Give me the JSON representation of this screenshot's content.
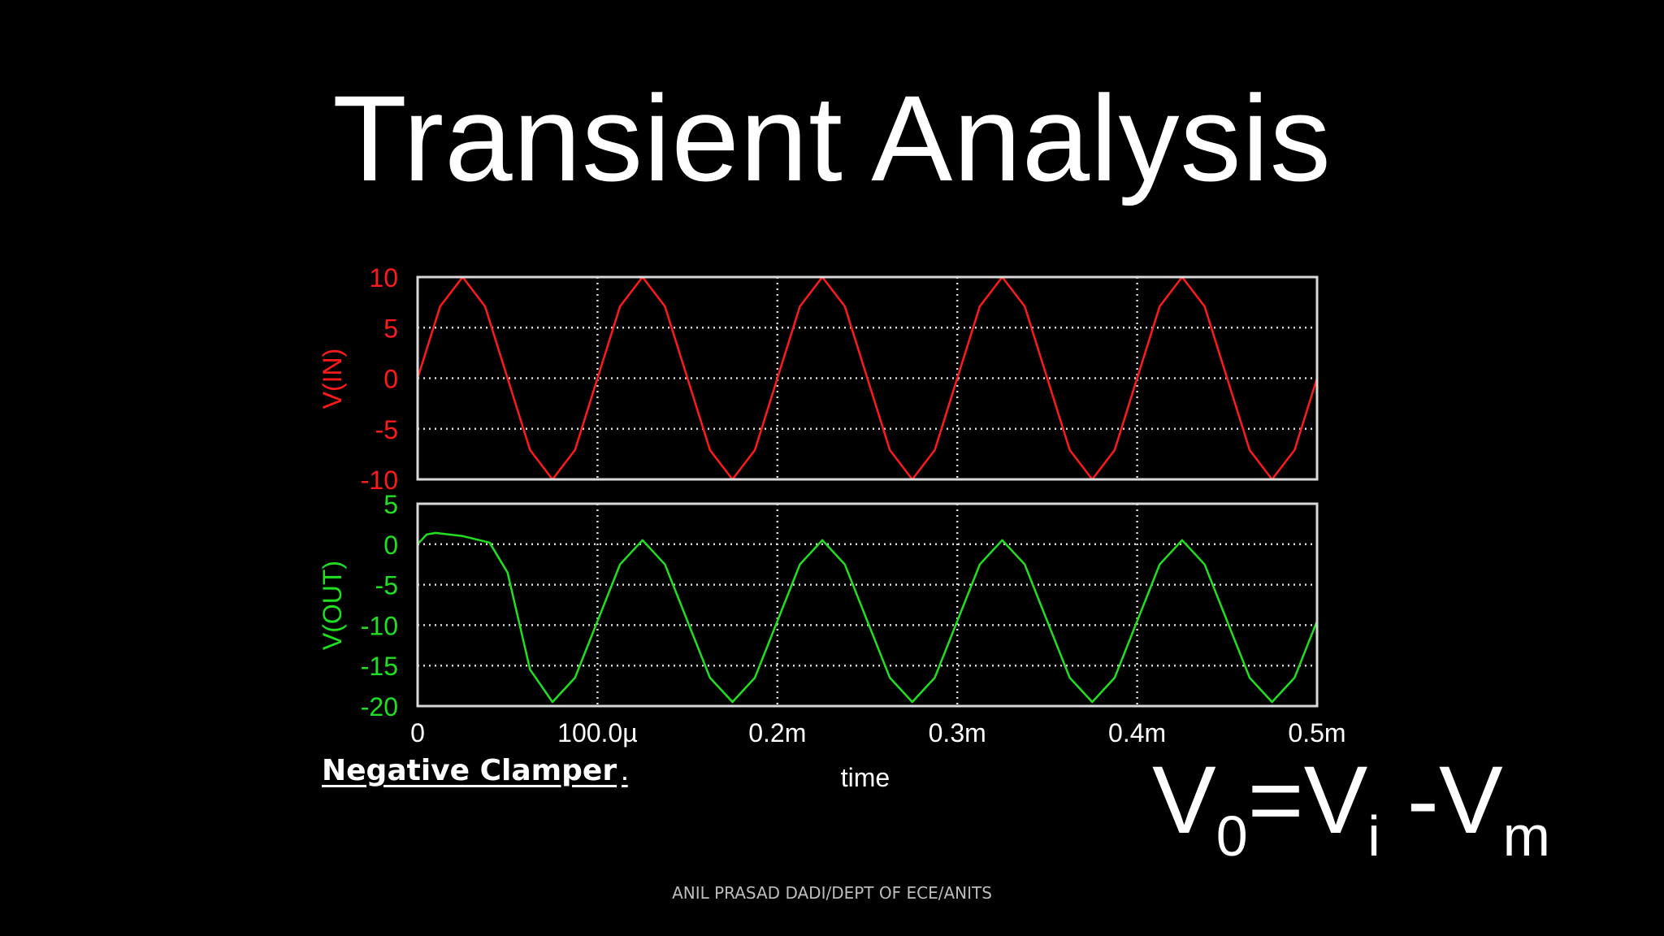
{
  "slide": {
    "title": "Transient Analysis",
    "caption": "Negative Clamper",
    "caption_mark": ".",
    "formula": {
      "v": "V",
      "sub0": "0",
      "eq": "=",
      "v2": "V",
      "sub_i": "i",
      "minus": " -",
      "v3": "V",
      "sub_m": "m"
    },
    "footer": "ANIL PRASAD DADI/DEPT OF ECE/ANITS"
  },
  "colors": {
    "input": "#ff1a1a",
    "output": "#1fe01f",
    "frame": "#d9d9d9",
    "grid": "#d9d9d9",
    "text": "#ffffff"
  },
  "chart_data": [
    {
      "type": "line",
      "ylabel": "V(IN)",
      "ylim": [
        -10,
        10
      ],
      "yticks": [
        "10",
        "5",
        "0",
        "-5",
        "-10"
      ],
      "xlim": [
        0,
        0.0005
      ],
      "grid": true,
      "series": [
        {
          "name": "V(IN)",
          "x": [
            0,
            1.25e-05,
            2.5e-05,
            3.75e-05,
            5e-05,
            6.25e-05,
            7.5e-05,
            8.75e-05,
            0.0001,
            0.0001125,
            0.000125,
            0.0001375,
            0.00015,
            0.0001625,
            0.000175,
            0.0001875,
            0.0002,
            0.0002125,
            0.000225,
            0.0002375,
            0.00025,
            0.0002625,
            0.000275,
            0.0002875,
            0.0003,
            0.0003125,
            0.000325,
            0.0003375,
            0.00035,
            0.0003625,
            0.000375,
            0.0003875,
            0.0004,
            0.0004125,
            0.000425,
            0.0004375,
            0.00045,
            0.0004625,
            0.000475,
            0.0004875,
            0.0005
          ],
          "y": [
            0,
            7.1,
            10,
            7.1,
            0,
            -7.1,
            -10,
            -7.1,
            0,
            7.1,
            10,
            7.1,
            0,
            -7.1,
            -10,
            -7.1,
            0,
            7.1,
            10,
            7.1,
            0,
            -7.1,
            -10,
            -7.1,
            0,
            7.1,
            10,
            7.1,
            0,
            -7.1,
            -10,
            -7.1,
            0,
            7.1,
            10,
            7.1,
            0,
            -7.1,
            -10,
            -7.1,
            0
          ]
        }
      ]
    },
    {
      "type": "line",
      "xlabel": "time",
      "ylabel": "V(OUT)",
      "ylim": [
        -20,
        5
      ],
      "yticks": [
        "5",
        "0",
        "-5",
        "-10",
        "-15",
        "-20"
      ],
      "xlim": [
        0,
        0.0005
      ],
      "xticks": [
        "0",
        "100.0µ",
        "0.2m",
        "0.3m",
        "0.4m",
        "0.5m"
      ],
      "grid": true,
      "series": [
        {
          "name": "V(OUT)",
          "x": [
            0,
            5e-06,
            1e-05,
            2.5e-05,
            4e-05,
            5e-05,
            6.25e-05,
            7.5e-05,
            8.75e-05,
            0.0001,
            0.0001125,
            0.000125,
            0.0001375,
            0.00015,
            0.0001625,
            0.000175,
            0.0001875,
            0.0002,
            0.0002125,
            0.000225,
            0.0002375,
            0.00025,
            0.0002625,
            0.000275,
            0.0002875,
            0.0003,
            0.0003125,
            0.000325,
            0.0003375,
            0.00035,
            0.0003625,
            0.000375,
            0.0003875,
            0.0004,
            0.0004125,
            0.000425,
            0.0004375,
            0.00045,
            0.0004625,
            0.000475,
            0.0004875,
            0.0005
          ],
          "y": [
            0,
            1.2,
            1.4,
            1.0,
            0.2,
            -3.5,
            -15.5,
            -19.5,
            -16.5,
            -9.5,
            -2.5,
            0.5,
            -2.5,
            -9.5,
            -16.5,
            -19.5,
            -16.5,
            -9.5,
            -2.5,
            0.5,
            -2.5,
            -9.5,
            -16.5,
            -19.5,
            -16.5,
            -9.5,
            -2.5,
            0.5,
            -2.5,
            -9.5,
            -16.5,
            -19.5,
            -16.5,
            -9.5,
            -2.5,
            0.5,
            -2.5,
            -9.5,
            -16.5,
            -19.5,
            -16.5,
            -9.5
          ]
        }
      ]
    }
  ]
}
